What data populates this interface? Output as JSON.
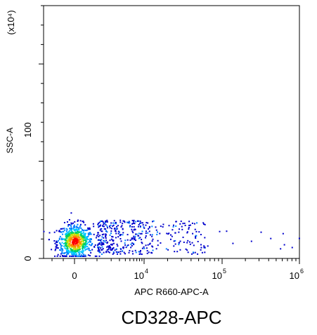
{
  "figure_caption": "CD328-APC",
  "chart_data": {
    "type": "scatter",
    "plot": "flow cytometry density dot plot",
    "xlabel": "APC R660-APC-A",
    "ylabel": "SSC-A",
    "y_multiplier_label": "(x10⁴)",
    "x_scale": "biexponential (linear near 0, log above 10^3)",
    "xlim": [
      -1000,
      1000000
    ],
    "ylim": [
      0,
      260
    ],
    "x_tick_labels": [
      {
        "base": "0",
        "exp": "",
        "value": 0
      },
      {
        "base": "10",
        "exp": "4",
        "value": 10000
      },
      {
        "base": "10",
        "exp": "5",
        "value": 100000
      },
      {
        "base": "10",
        "exp": "6",
        "value": 1000000
      }
    ],
    "y_tick_labels": [
      {
        "label": "0",
        "value": 0
      },
      {
        "label": "100",
        "value": 100
      }
    ],
    "clusters": [
      {
        "name": "negative population (dense core)",
        "x_center": 0,
        "y_center": 18,
        "x_spread": 400,
        "y_spread": 9,
        "density": "very high",
        "points": 700
      },
      {
        "name": "positive tail",
        "x_range": [
          1000,
          60000
        ],
        "y_range": [
          5,
          40
        ],
        "density": "low",
        "points": 420
      },
      {
        "name": "sparse high-x events",
        "x_range": [
          60000,
          1000000
        ],
        "y_range": [
          10,
          30
        ],
        "density": "very low",
        "points": 12
      }
    ],
    "color_scale": [
      "#0000cc",
      "#0080ff",
      "#00c8ff",
      "#00d060",
      "#c8e000",
      "#ff8800",
      "#ff0000"
    ],
    "grid": false,
    "legend": "none"
  }
}
